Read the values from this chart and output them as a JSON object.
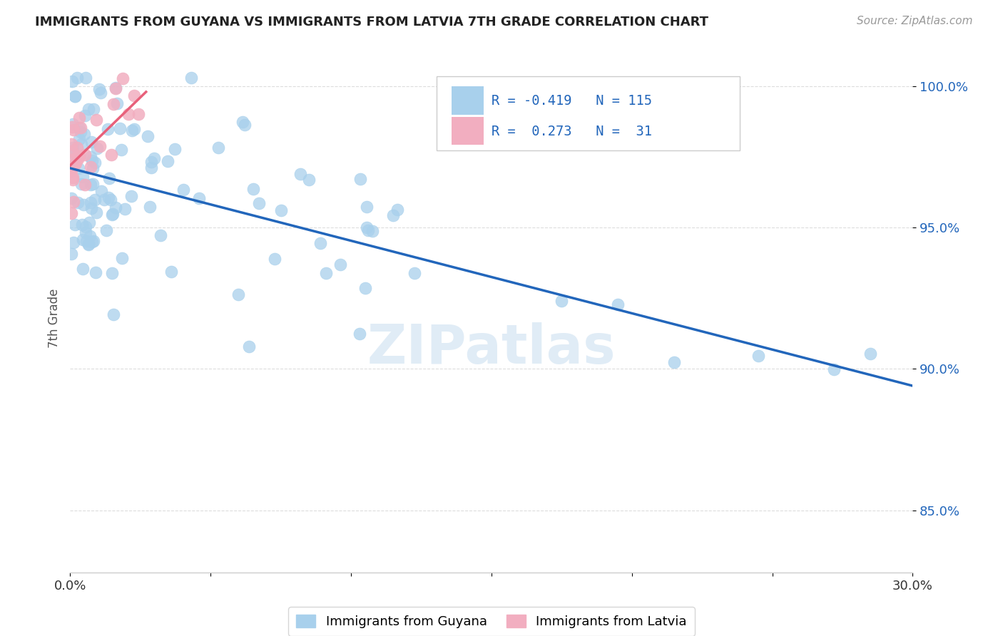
{
  "title": "IMMIGRANTS FROM GUYANA VS IMMIGRANTS FROM LATVIA 7TH GRADE CORRELATION CHART",
  "source": "Source: ZipAtlas.com",
  "ylabel": "7th Grade",
  "xmin": 0.0,
  "xmax": 0.3,
  "ymin": 0.828,
  "ymax": 1.008,
  "yticks": [
    0.85,
    0.9,
    0.95,
    1.0
  ],
  "ytick_labels": [
    "85.0%",
    "90.0%",
    "95.0%",
    "100.0%"
  ],
  "guyana_color": "#a8d0ec",
  "latvia_color": "#f2aec0",
  "guyana_line_color": "#2266bb",
  "latvia_line_color": "#e8607a",
  "guyana_label": "Immigrants from Guyana",
  "latvia_label": "Immigrants from Latvia",
  "legend_text_color": "#2266bb",
  "watermark_color": "#cce0f0",
  "grid_color": "#dddddd",
  "title_color": "#222222",
  "source_color": "#999999",
  "ylabel_color": "#555555",
  "xtick_color": "#333333",
  "ytick_color": "#2266bb",
  "guyana_line_y0": 0.971,
  "guyana_line_y1": 0.894,
  "latvia_line_y0": 0.972,
  "latvia_line_y1": 0.998
}
